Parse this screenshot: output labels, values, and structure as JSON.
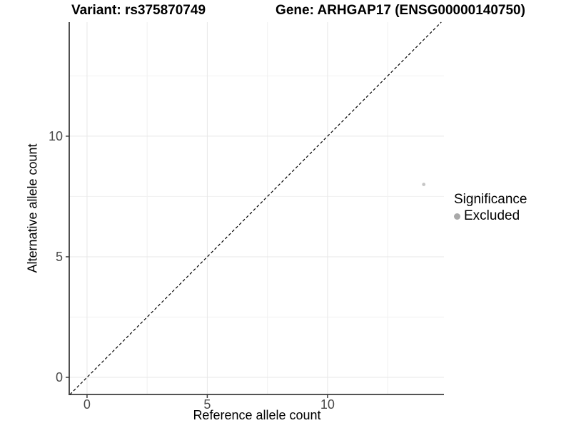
{
  "figure": {
    "title_left": "Variant: rs375870749",
    "title_right": "Gene: ARHGAP17 (ENSG00000140750)"
  },
  "legend": {
    "title": "Significance",
    "items": [
      {
        "label": "Excluded",
        "color": "#a9a9a9"
      }
    ]
  },
  "chart_data": {
    "type": "scatter",
    "title": "Variant: rs375870749 — Gene: ARHGAP17 (ENSG00000140750)",
    "xlabel": "Reference allele count",
    "ylabel": "Alternative allele count",
    "xlim": [
      -0.74,
      14.84
    ],
    "ylim": [
      -0.71,
      14.73
    ],
    "x_ticks": [
      0,
      5,
      10
    ],
    "y_ticks": [
      0,
      5,
      10
    ],
    "x_minor_ticks": [
      2.5,
      7.5,
      12.5
    ],
    "y_minor_ticks": [
      2.5,
      7.5,
      12.5
    ],
    "grid": true,
    "legend_position": "right",
    "identity_line": {
      "style": "dashed",
      "color": "#000000"
    },
    "series": [
      {
        "name": "Excluded",
        "color": "#c6c6c6",
        "points": [
          {
            "x": 14,
            "y": 8
          }
        ]
      }
    ]
  },
  "style": {
    "grid_major_color": "#e7e7e7",
    "grid_minor_color": "#f1f1f1",
    "axis_line_color": "#3c3c3c",
    "tick_mark_color": "#3c3c3c",
    "tick_label_color": "#4a4a4a",
    "background_color": "#ffffff"
  }
}
